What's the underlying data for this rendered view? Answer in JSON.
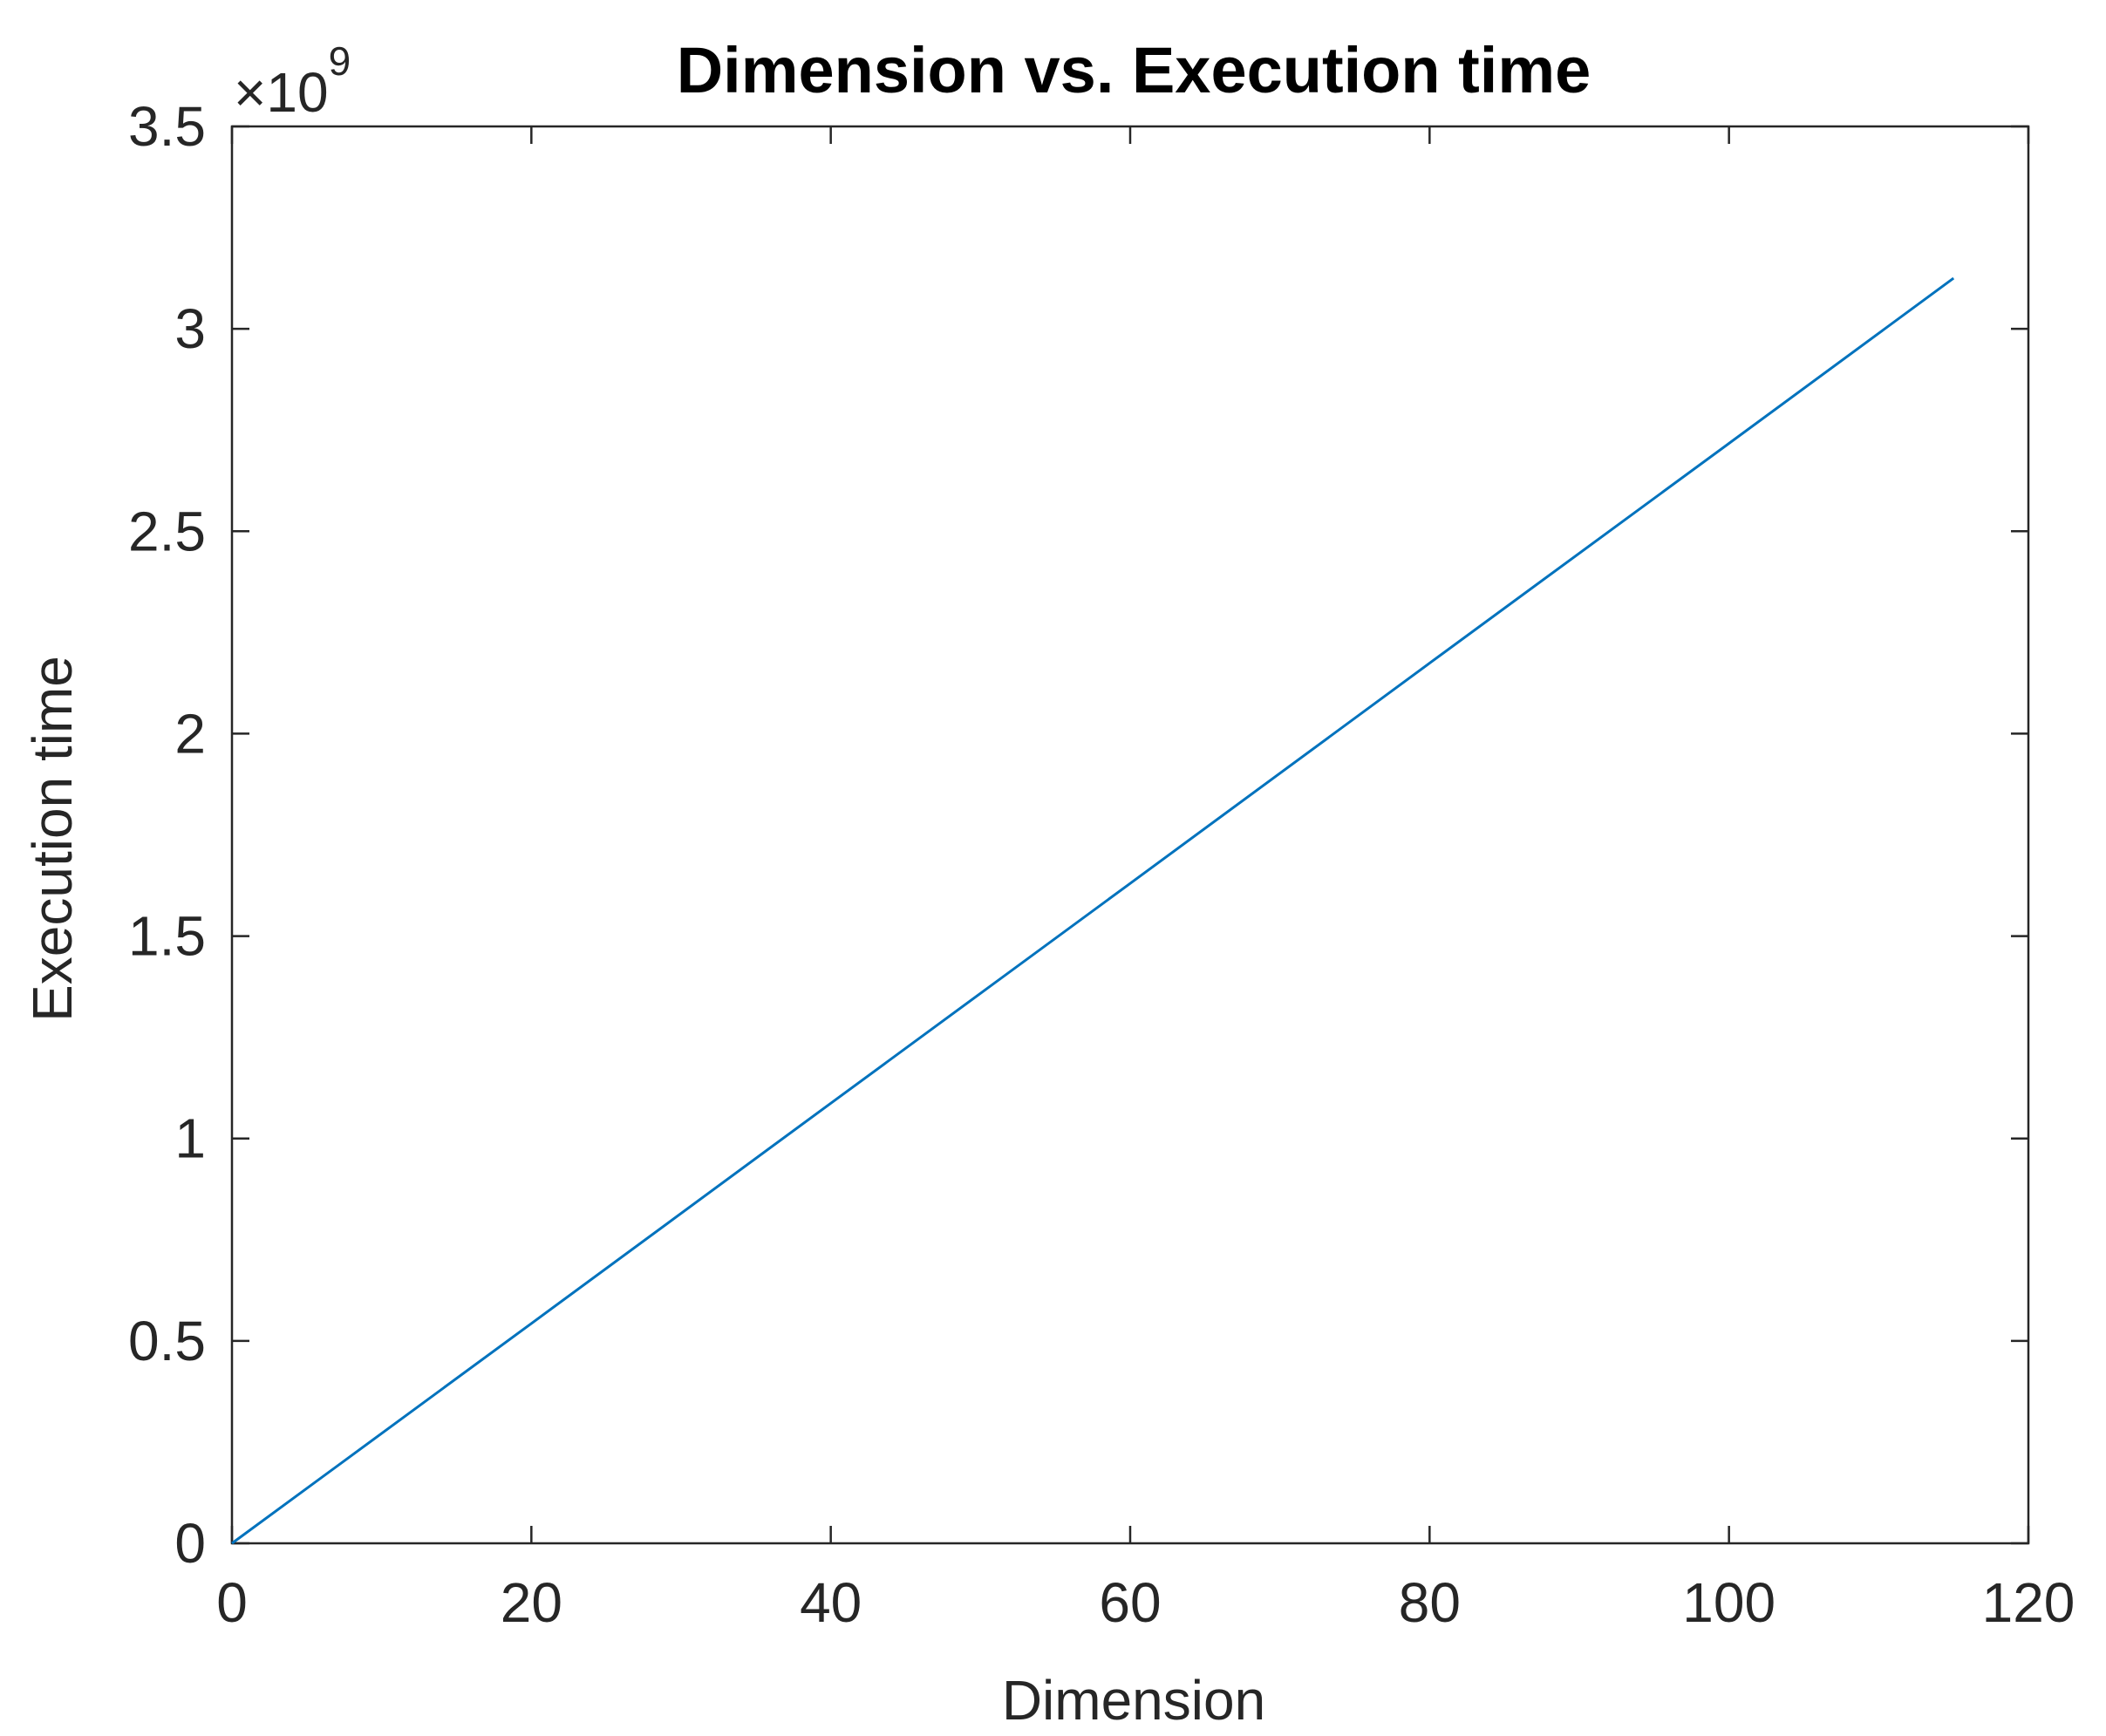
{
  "chart_data": {
    "type": "line",
    "title": "Dimension vs. Execution time",
    "xlabel": "Dimension",
    "ylabel": "Execution time",
    "xlim": [
      0,
      120
    ],
    "ylim": [
      0,
      3.5
    ],
    "y_exponent_base": "10",
    "y_exponent_power": "9",
    "y_exponent_prefix": "×",
    "xticks": [
      0,
      20,
      40,
      60,
      80,
      100,
      120
    ],
    "xtick_labels": [
      "0",
      "20",
      "40",
      "60",
      "80",
      "100",
      "120"
    ],
    "yticks": [
      0,
      0.5,
      1,
      1.5,
      2,
      2.5,
      3,
      3.5
    ],
    "ytick_labels": [
      "0",
      "0.5",
      "1",
      "1.5",
      "2",
      "2.5",
      "3",
      "3.5"
    ],
    "grid": false,
    "series": [
      {
        "color": "#0072BD",
        "x": [
          0,
          20,
          40,
          60,
          80,
          100,
          115
        ],
        "y": [
          0,
          0.543,
          1.087,
          1.63,
          2.174,
          2.717,
          3.125
        ]
      }
    ]
  }
}
